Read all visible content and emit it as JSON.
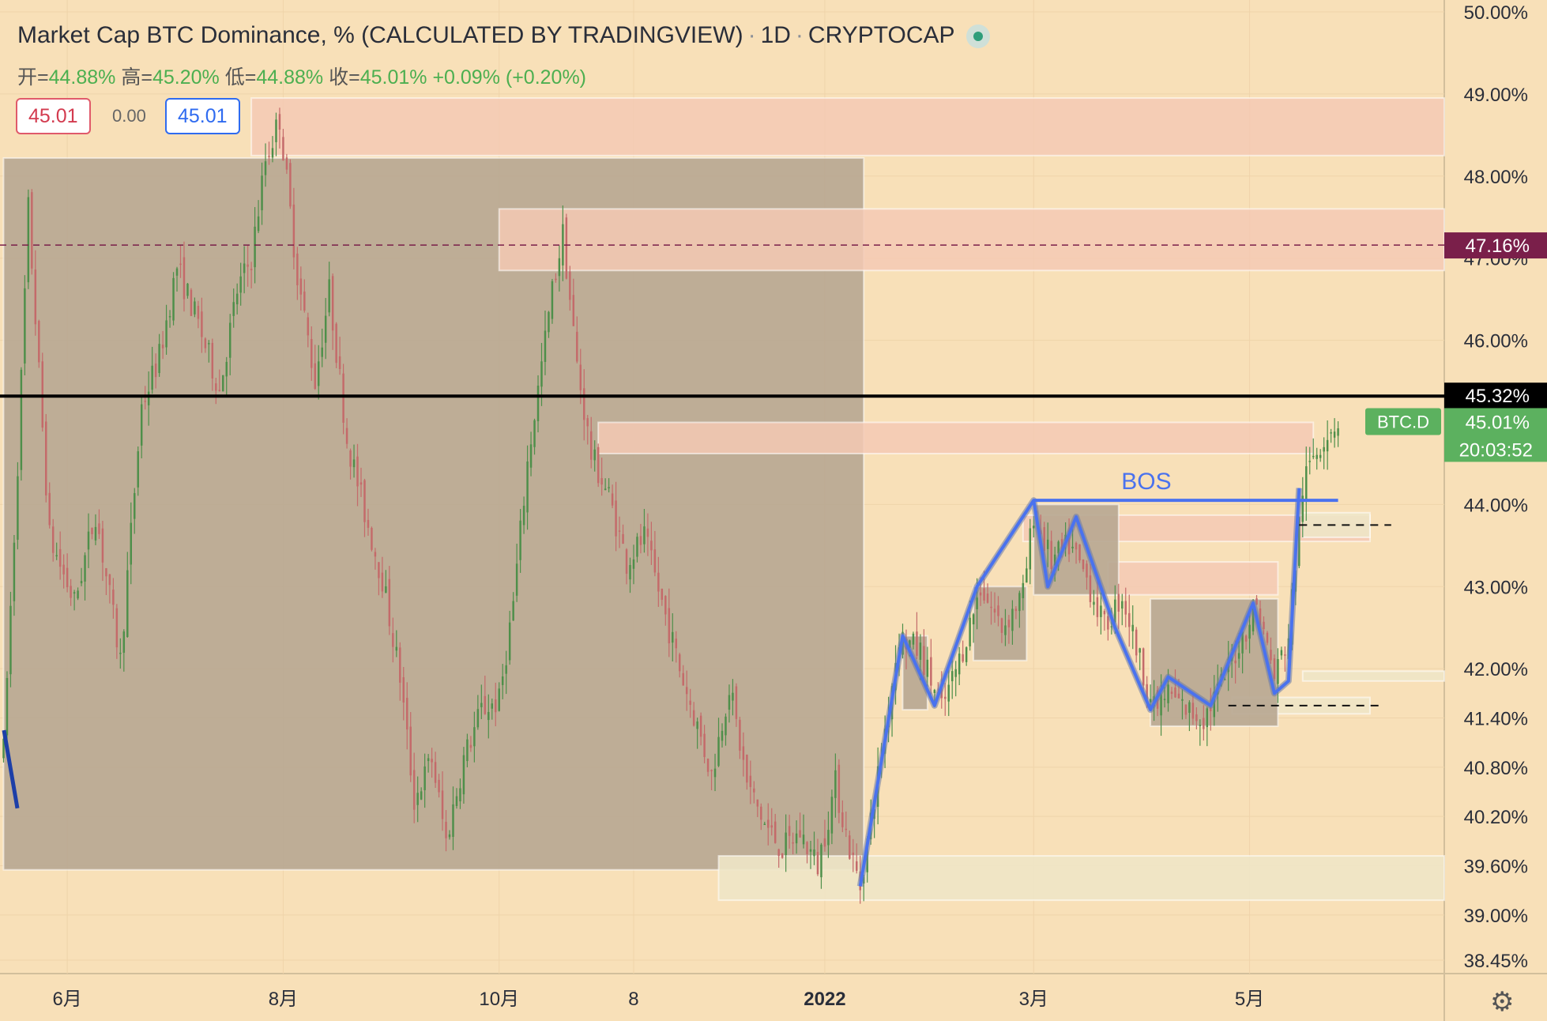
{
  "legend": {
    "title": "Market Cap BTC Dominance, % (CALCULATED BY TRADINGVIEW)",
    "interval": "1D",
    "exchange": "CRYPTOCAP",
    "open_label": "开=",
    "open": "44.88%",
    "high_label": "高=",
    "high": "45.20%",
    "low_label": "低=",
    "low": "44.88%",
    "close_label": "收=",
    "close": "45.01%",
    "change": "+0.09% (+0.20%)"
  },
  "order_boxes": {
    "sell": "45.01",
    "spread": "0.00",
    "buy": "45.01"
  },
  "colors": {
    "background": "#f8e0b8",
    "up_candle": "#4e8f4a",
    "down_candle": "#c46a6a",
    "dark_zone": "#b8a892",
    "supply_zone": "#f5c9b4",
    "demand_zone": "#eee6c6",
    "structure_line": "#4a72ee",
    "price_tag": "#5cb15f",
    "alert_tag": "#7a1f4a"
  },
  "chart_data": {
    "type": "line",
    "symbol": "BTC.D",
    "ylim": [
      38.45,
      50.0
    ],
    "y_ticks": [
      {
        "value": 50.0,
        "label": "50.00%"
      },
      {
        "value": 49.0,
        "label": "49.00%"
      },
      {
        "value": 48.0,
        "label": "48.00%"
      },
      {
        "value": 47.0,
        "label": "47.00%"
      },
      {
        "value": 46.0,
        "label": "46.00%"
      },
      {
        "value": 44.0,
        "label": "44.00%"
      },
      {
        "value": 43.0,
        "label": "43.00%"
      },
      {
        "value": 42.0,
        "label": "42.00%"
      },
      {
        "value": 41.4,
        "label": "41.40%"
      },
      {
        "value": 40.8,
        "label": "40.80%"
      },
      {
        "value": 40.2,
        "label": "40.20%"
      },
      {
        "value": 39.6,
        "label": "39.60%"
      },
      {
        "value": 39.0,
        "label": "39.00%"
      },
      {
        "value": 38.45,
        "label": "38.45%"
      }
    ],
    "x_ticks": [
      {
        "date": "2021-06-01",
        "label": "6月",
        "bold": false
      },
      {
        "date": "2021-08-01",
        "label": "8月",
        "bold": false
      },
      {
        "date": "2021-10-01",
        "label": "10月",
        "bold": false
      },
      {
        "date": "2021-11-08",
        "label": "8",
        "bold": false
      },
      {
        "date": "2022-01-01",
        "label": "2022",
        "bold": true
      },
      {
        "date": "2022-03-01",
        "label": "3月",
        "bold": false
      },
      {
        "date": "2022-05-01",
        "label": "5月",
        "bold": false
      }
    ],
    "x_range": [
      "2021-05-13",
      "2022-06-25"
    ],
    "series": [
      {
        "values": [
          [
            "2021-05-14",
            41.0
          ],
          [
            "2021-05-18",
            44.5
          ],
          [
            "2021-05-21",
            47.6
          ],
          [
            "2021-05-27",
            43.6
          ],
          [
            "2021-06-03",
            42.8
          ],
          [
            "2021-06-09",
            43.9
          ],
          [
            "2021-06-16",
            42.1
          ],
          [
            "2021-06-22",
            45.2
          ],
          [
            "2021-06-27",
            45.8
          ],
          [
            "2021-07-02",
            46.9
          ],
          [
            "2021-07-08",
            46.2
          ],
          [
            "2021-07-14",
            45.4
          ],
          [
            "2021-07-19",
            46.6
          ],
          [
            "2021-07-23",
            47.0
          ],
          [
            "2021-07-27",
            48.2
          ],
          [
            "2021-07-31",
            48.7
          ],
          [
            "2021-08-05",
            46.8
          ],
          [
            "2021-08-10",
            45.5
          ],
          [
            "2021-08-14",
            46.6
          ],
          [
            "2021-08-19",
            44.8
          ],
          [
            "2021-08-24",
            43.9
          ],
          [
            "2021-08-29",
            43.1
          ],
          [
            "2021-09-03",
            41.9
          ],
          [
            "2021-09-07",
            40.4
          ],
          [
            "2021-09-12",
            40.9
          ],
          [
            "2021-09-16",
            39.9
          ],
          [
            "2021-09-21",
            40.9
          ],
          [
            "2021-09-26",
            41.5
          ],
          [
            "2021-10-01",
            41.6
          ],
          [
            "2021-10-05",
            42.8
          ],
          [
            "2021-10-09",
            44.5
          ],
          [
            "2021-10-13",
            45.7
          ],
          [
            "2021-10-16",
            46.6
          ],
          [
            "2021-10-19",
            47.3
          ],
          [
            "2021-10-23",
            45.7
          ],
          [
            "2021-10-27",
            44.6
          ],
          [
            "2021-11-01",
            44.1
          ],
          [
            "2021-11-06",
            43.3
          ],
          [
            "2021-11-11",
            43.6
          ],
          [
            "2021-11-16",
            42.8
          ],
          [
            "2021-11-21",
            42.0
          ],
          [
            "2021-11-26",
            41.3
          ],
          [
            "2021-11-30",
            40.7
          ],
          [
            "2021-12-05",
            41.8
          ],
          [
            "2021-12-10",
            40.6
          ],
          [
            "2021-12-15",
            40.1
          ],
          [
            "2021-12-20",
            39.8
          ],
          [
            "2021-12-25",
            40.0
          ],
          [
            "2021-12-30",
            39.6
          ],
          [
            "2022-01-04",
            40.6
          ],
          [
            "2022-01-08",
            39.8
          ],
          [
            "2022-01-11",
            39.35
          ],
          [
            "2022-01-16",
            40.7
          ],
          [
            "2022-01-22",
            42.4
          ],
          [
            "2022-01-28",
            42.2
          ],
          [
            "2022-02-03",
            41.5
          ],
          [
            "2022-02-08",
            42.1
          ],
          [
            "2022-02-14",
            43.0
          ],
          [
            "2022-02-20",
            42.5
          ],
          [
            "2022-02-26",
            42.9
          ],
          [
            "2022-03-01",
            43.9
          ],
          [
            "2022-03-06",
            43.3
          ],
          [
            "2022-03-11",
            43.5
          ],
          [
            "2022-03-16",
            43.1
          ],
          [
            "2022-03-21",
            42.5
          ],
          [
            "2022-03-26",
            42.9
          ],
          [
            "2022-03-31",
            42.1
          ],
          [
            "2022-04-04",
            41.5
          ],
          [
            "2022-04-08",
            41.7
          ],
          [
            "2022-04-13",
            41.5
          ],
          [
            "2022-04-18",
            41.4
          ],
          [
            "2022-04-23",
            41.8
          ],
          [
            "2022-04-28",
            42.3
          ],
          [
            "2022-05-03",
            42.8
          ],
          [
            "2022-05-08",
            41.9
          ],
          [
            "2022-05-12",
            42.4
          ],
          [
            "2022-05-16",
            44.2
          ],
          [
            "2022-05-19",
            44.6
          ],
          [
            "2022-05-23",
            44.9
          ],
          [
            "2022-05-26",
            45.01
          ]
        ]
      }
    ],
    "drawings": {
      "zones": [
        {
          "kind": "dark",
          "x0": "2021-05-14",
          "x1": "2022-01-12",
          "y0": 39.55,
          "y1": 48.22
        },
        {
          "kind": "supply",
          "x0": "2021-07-23",
          "x1": "2022-06-25",
          "y0": 48.25,
          "y1": 48.95
        },
        {
          "kind": "supply",
          "x0": "2021-10-01",
          "x1": "2022-06-25",
          "y0": 46.85,
          "y1": 47.6
        },
        {
          "kind": "supply",
          "x0": "2021-10-29",
          "x1": "2022-05-19",
          "y0": 44.62,
          "y1": 45.0
        },
        {
          "kind": "supply",
          "x0": "2022-02-26",
          "x1": "2022-06-04",
          "y0": 43.55,
          "y1": 43.87
        },
        {
          "kind": "supply",
          "x0": "2022-03-22",
          "x1": "2022-05-09",
          "y0": 42.9,
          "y1": 43.3
        },
        {
          "kind": "demand",
          "x0": "2021-12-02",
          "x1": "2022-06-25",
          "y0": 39.18,
          "y1": 39.72
        },
        {
          "kind": "demand",
          "x0": "2022-05-16",
          "x1": "2022-06-04",
          "y0": 43.6,
          "y1": 43.9
        },
        {
          "kind": "demand",
          "x0": "2022-05-16",
          "x1": "2022-06-25",
          "y0": 41.85,
          "y1": 41.97
        },
        {
          "kind": "demand",
          "x0": "2022-04-26",
          "x1": "2022-06-04",
          "y0": 41.45,
          "y1": 41.65
        },
        {
          "kind": "dark",
          "x0": "2022-01-23",
          "x1": "2022-01-30",
          "y0": 41.5,
          "y1": 42.4
        },
        {
          "kind": "dark",
          "x0": "2022-02-12",
          "x1": "2022-02-27",
          "y0": 42.1,
          "y1": 43.0
        },
        {
          "kind": "dark",
          "x0": "2022-03-01",
          "x1": "2022-03-25",
          "y0": 42.9,
          "y1": 44.0
        },
        {
          "kind": "dark",
          "x0": "2022-04-03",
          "x1": "2022-05-09",
          "y0": 41.3,
          "y1": 42.85
        }
      ],
      "hlines": [
        {
          "kind": "alert",
          "y": 47.16
        },
        {
          "kind": "bold",
          "y": 45.32
        }
      ],
      "bos": {
        "label": "BOS",
        "x0": "2022-03-01",
        "x1": "2022-05-26",
        "y": 44.05
      },
      "structure": [
        [
          "2022-01-11",
          39.35
        ],
        [
          "2022-01-23",
          42.4
        ],
        [
          "2022-02-01",
          41.55
        ],
        [
          "2022-02-13",
          43.0
        ],
        [
          "2022-03-01",
          44.05
        ],
        [
          "2022-03-05",
          43.0
        ],
        [
          "2022-03-13",
          43.85
        ],
        [
          "2022-03-24",
          42.5
        ],
        [
          "2022-04-03",
          41.5
        ],
        [
          "2022-04-08",
          41.9
        ],
        [
          "2022-04-20",
          41.55
        ],
        [
          "2022-05-02",
          42.8
        ],
        [
          "2022-05-08",
          41.7
        ],
        [
          "2022-05-12",
          41.85
        ],
        [
          "2022-05-15",
          44.2
        ]
      ],
      "dashed_marks": [
        {
          "x0": "2022-05-15",
          "x1": "2022-06-10",
          "y": 43.75
        },
        {
          "x0": "2022-04-25",
          "x1": "2022-06-08",
          "y": 41.55
        }
      ]
    },
    "price_tags": {
      "alert": "47.16%",
      "bold_line": "45.32%",
      "symbol": "BTC.D",
      "last_price": "45.01%",
      "countdown": "20:03:52"
    }
  }
}
